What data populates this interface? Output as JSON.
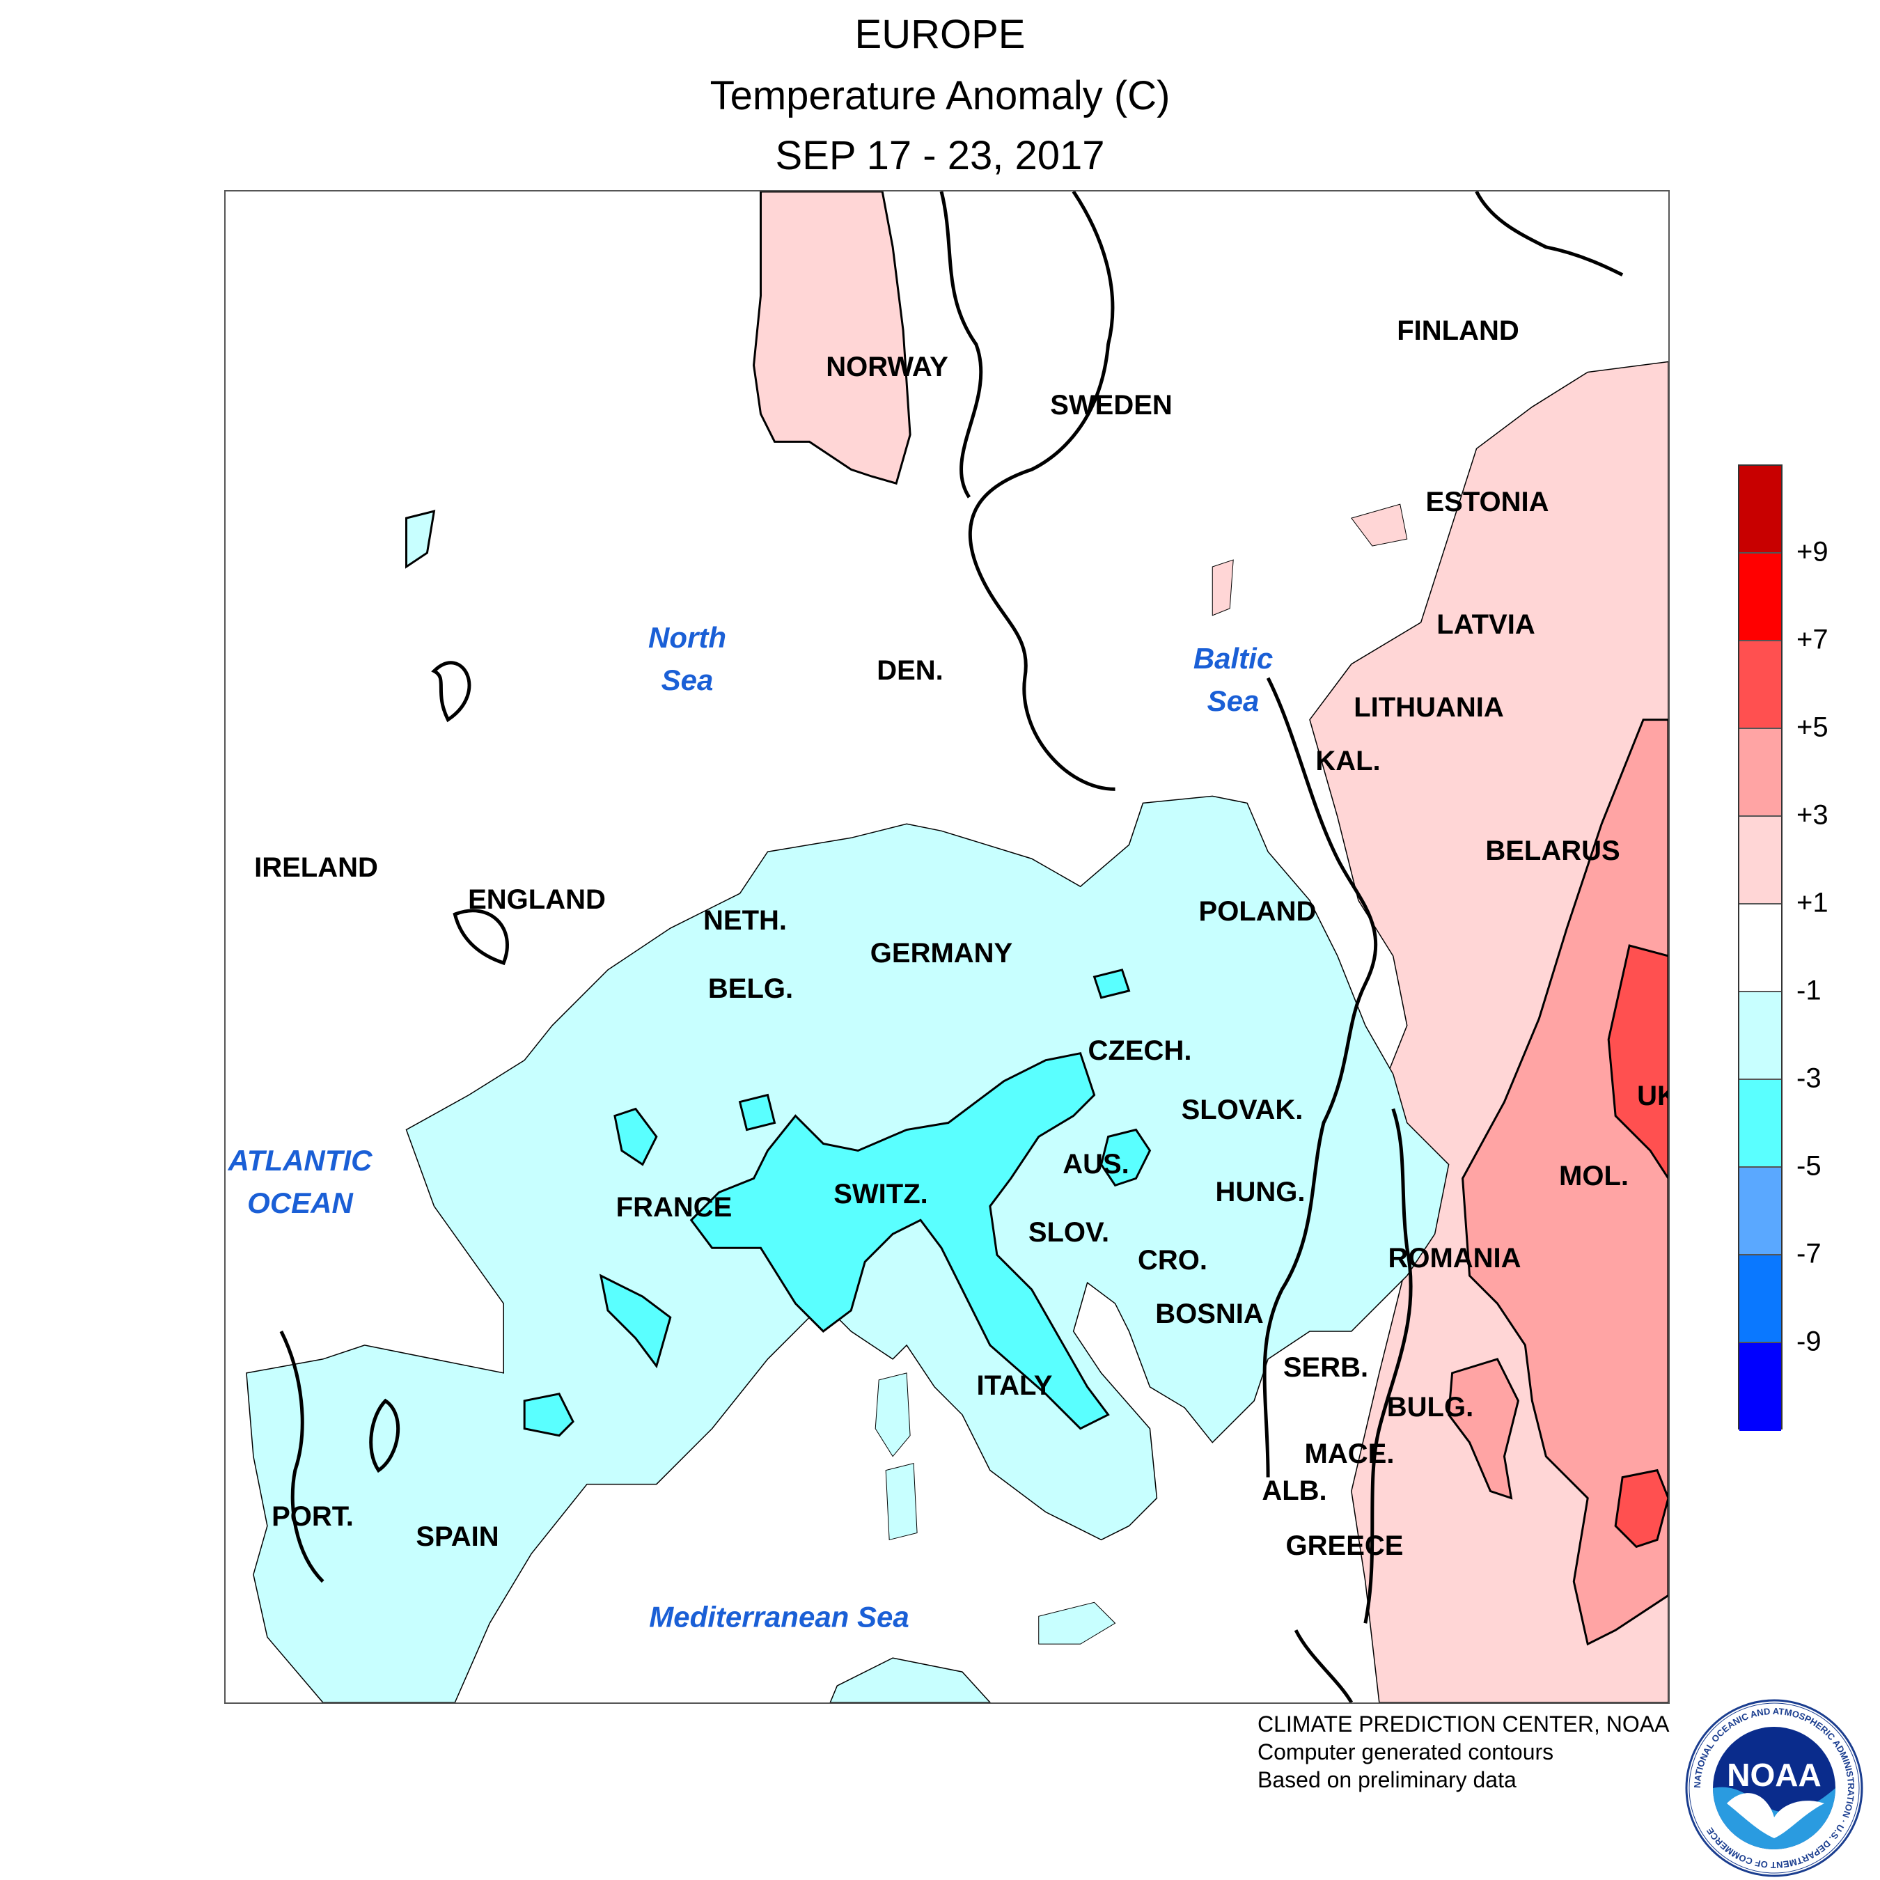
{
  "title": {
    "region": "EUROPE",
    "variable": "Temperature Anomaly (C)",
    "period": "SEP 17 - 23, 2017"
  },
  "countries": {
    "norway": "NORWAY",
    "sweden": "SWEDEN",
    "finland": "FINLAND",
    "estonia": "ESTONIA",
    "latvia": "LATVIA",
    "lithuania": "LITHUANIA",
    "kaliningrad": "KAL.",
    "denmark": "DEN.",
    "ireland": "IRELAND",
    "england": "ENGLAND",
    "netherlands": "NETH.",
    "belgium": "BELG.",
    "germany": "GERMANY",
    "poland": "POLAND",
    "belarus": "BELARUS",
    "czech": "CZECH.",
    "slovakia": "SLOVAK.",
    "ukraine": "UK",
    "austria": "AUS.",
    "hungary": "HUNG.",
    "moldova": "MOL.",
    "france": "FRANCE",
    "switzerland": "SWITZ.",
    "slovenia": "SLOV.",
    "croatia": "CRO.",
    "romania": "ROMANIA",
    "bosnia": "BOSNIA",
    "serbia": "SERB.",
    "bulgaria": "BULG.",
    "italy": "ITALY",
    "macedonia": "MACE.",
    "albania": "ALB.",
    "portugal": "PORT.",
    "spain": "SPAIN",
    "greece": "GREECE"
  },
  "seas": {
    "north_sea": "North\nSea",
    "baltic_sea": "Baltic\nSea",
    "atlantic": "ATLANTIC\nOCEAN",
    "mediterranean": "Mediterranean Sea"
  },
  "legend": {
    "ticks": [
      "+9",
      "+7",
      "+5",
      "+3",
      "+1",
      "-1",
      "-3",
      "-5",
      "-7",
      "-9"
    ],
    "bins": [
      {
        "range": "> +9",
        "color": "#c80000"
      },
      {
        "range": "+7 to +9",
        "color": "#ff0000"
      },
      {
        "range": "+5 to +7",
        "color": "#ff5050"
      },
      {
        "range": "+3 to +5",
        "color": "#ffa4a4"
      },
      {
        "range": "+1 to +3",
        "color": "#ffd6d6"
      },
      {
        "range": "-1 to +1",
        "color": "#ffffff"
      },
      {
        "range": "-3 to -1",
        "color": "#c8ffff"
      },
      {
        "range": "-5 to -3",
        "color": "#5affff"
      },
      {
        "range": "-7 to -5",
        "color": "#5aa8ff"
      },
      {
        "range": "-9 to -7",
        "color": "#0a78ff"
      },
      {
        "range": "< -9",
        "color": "#0000ff"
      }
    ]
  },
  "credits": {
    "line1": "CLIMATE PREDICTION CENTER, NOAA",
    "line2": "Computer generated contours",
    "line3": "Based on preliminary data"
  },
  "logo": {
    "text": "NOAA",
    "ring_text": "NATIONAL OCEANIC AND ATMOSPHERIC ADMINISTRATION · U.S. DEPARTMENT OF COMMERCE"
  }
}
